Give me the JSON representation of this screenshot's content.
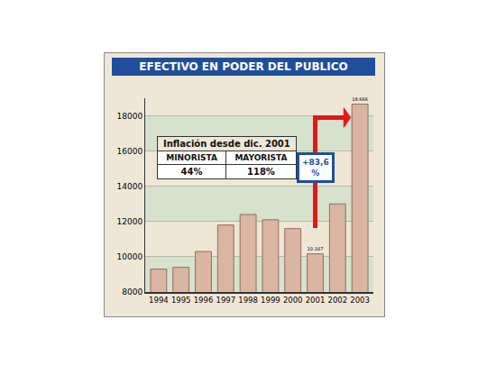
{
  "chart_data": {
    "type": "bar",
    "title": "EFECTIVO EN PODER DEL PUBLICO",
    "categories": [
      "1994",
      "1995",
      "1996",
      "1997",
      "1998",
      "1999",
      "2000",
      "2001",
      "2002",
      "2003"
    ],
    "values": [
      9300,
      9400,
      10300,
      11800,
      12400,
      12100,
      11600,
      10167,
      13000,
      18666
    ],
    "value_labels": [
      null,
      null,
      null,
      null,
      null,
      null,
      null,
      "10.167",
      null,
      "18.666"
    ],
    "color": "#d9b5a2",
    "ylim": [
      8000,
      19000
    ],
    "yticks": [
      8000,
      10000,
      12000,
      14000,
      16000,
      18000
    ],
    "grid": true,
    "annotations": {
      "change": "+83,6 %",
      "table": {
        "title": "Inflación desde dic. 2001",
        "headers": [
          "MINORISTA",
          "MAYORISTA"
        ],
        "cells": [
          "44%",
          "118%"
        ]
      }
    }
  }
}
